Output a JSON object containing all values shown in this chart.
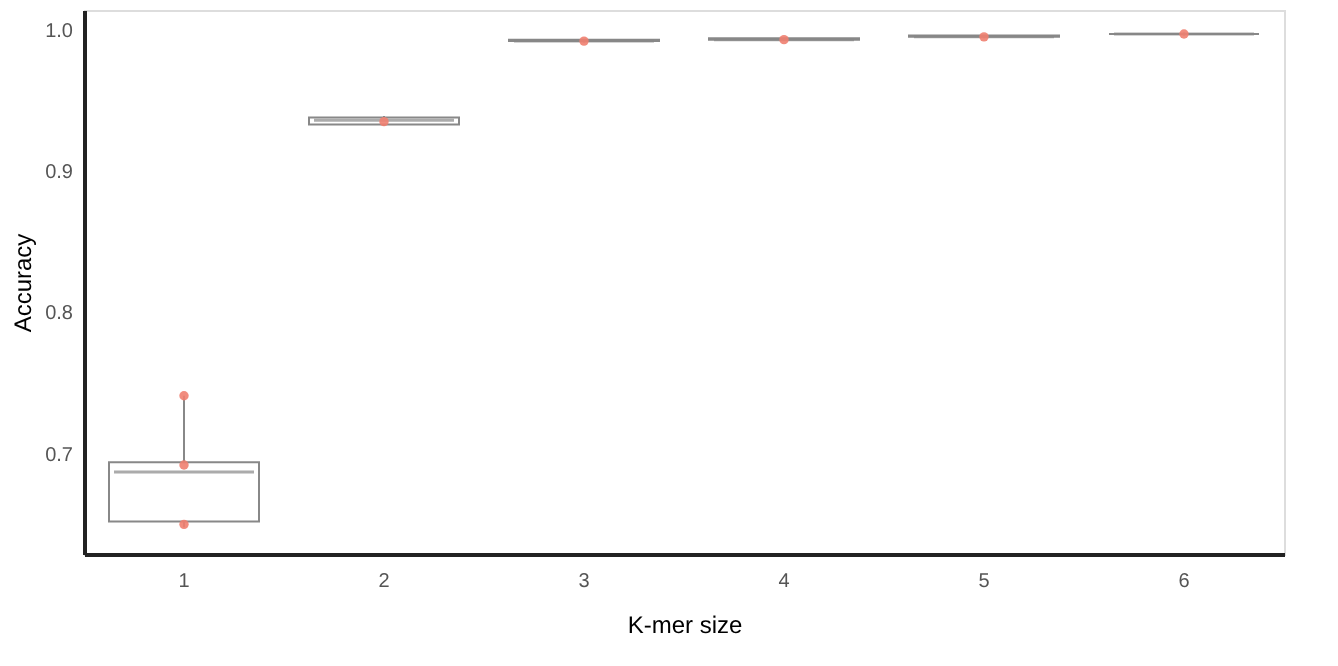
{
  "chart_data": {
    "type": "box",
    "xlabel": "K-mer size",
    "ylabel": "Accuracy",
    "categories": [
      "1",
      "2",
      "3",
      "4",
      "5",
      "6"
    ],
    "color": "#888888",
    "ylim": [
      0.629,
      1.014
    ],
    "yticks": [
      {
        "value": 0.7,
        "label": "0.7"
      },
      {
        "value": 0.8,
        "label": "0.8"
      },
      {
        "value": 0.9,
        "label": "0.9"
      },
      {
        "value": 1.0,
        "label": "1.0"
      }
    ],
    "grid": false,
    "boxes": [
      {
        "low": 0.648,
        "q1": 0.652,
        "median": 0.687,
        "q3": 0.694,
        "high": 0.741
      },
      {
        "low": 0.932,
        "q1": 0.933,
        "median": 0.936,
        "q3": 0.938,
        "high": 0.939
      },
      {
        "low": 0.991,
        "q1": 0.992,
        "median": 0.992,
        "q3": 0.993,
        "high": 0.993
      },
      {
        "low": 0.992,
        "q1": 0.993,
        "median": 0.993,
        "q3": 0.994,
        "high": 0.994
      },
      {
        "low": 0.994,
        "q1": 0.995,
        "median": 0.995,
        "q3": 0.996,
        "high": 0.996
      },
      {
        "low": 0.996,
        "q1": 0.997,
        "median": 0.997,
        "q3": 0.997,
        "high": 0.998
      }
    ],
    "series": [
      {
        "type": "scatter",
        "color": "#f08070",
        "marker": "circle",
        "x": [
          "1",
          "1",
          "1",
          "2",
          "3",
          "4",
          "5",
          "6"
        ],
        "values": [
          0.741,
          0.692,
          0.65,
          0.935,
          0.992,
          0.993,
          0.995,
          0.997
        ]
      }
    ]
  }
}
